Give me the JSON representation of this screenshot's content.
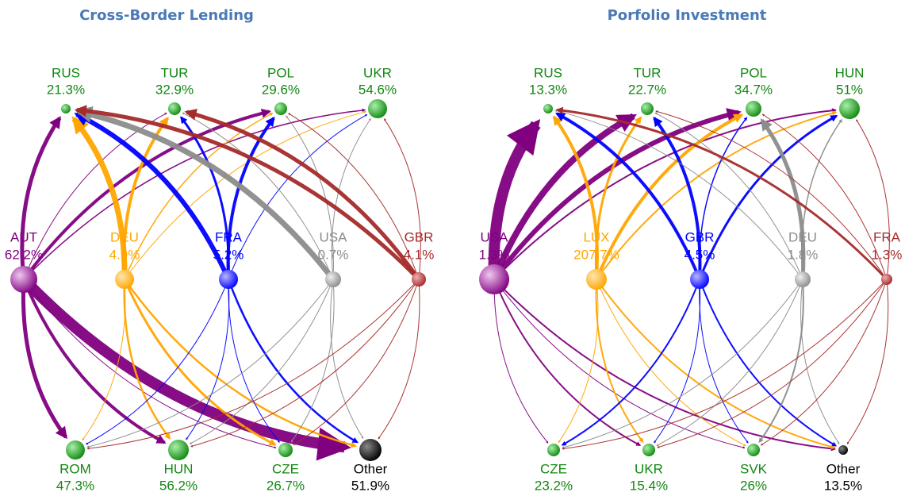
{
  "panels": [
    {
      "title": "Cross-Border Lending",
      "sources": [
        {
          "label": "AUT",
          "value": "62.2%"
        },
        {
          "label": "DEU",
          "value": "4.9%"
        },
        {
          "label": "FRA",
          "value": "5.2%"
        },
        {
          "label": "USA",
          "value": "0.7%"
        },
        {
          "label": "GBR",
          "value": "4.1%"
        }
      ],
      "top_targets": [
        {
          "label": "RUS",
          "value": "21.3%"
        },
        {
          "label": "TUR",
          "value": "32.9%"
        },
        {
          "label": "POL",
          "value": "29.6%"
        },
        {
          "label": "UKR",
          "value": "54.6%"
        }
      ],
      "bottom_targets": [
        {
          "label": "ROM",
          "value": "47.3%"
        },
        {
          "label": "HUN",
          "value": "56.2%"
        },
        {
          "label": "CZE",
          "value": "26.7%"
        },
        {
          "label": "Other",
          "value": "51.9%"
        }
      ]
    },
    {
      "title": "Porfolio Investment",
      "sources": [
        {
          "label": "USA",
          "value": "1.3%"
        },
        {
          "label": "LUX",
          "value": "207.7%"
        },
        {
          "label": "GBR",
          "value": "4.5%"
        },
        {
          "label": "DEU",
          "value": "1.8%"
        },
        {
          "label": "FRA",
          "value": "1.3%"
        }
      ],
      "top_targets": [
        {
          "label": "RUS",
          "value": "13.3%"
        },
        {
          "label": "TUR",
          "value": "22.7%"
        },
        {
          "label": "POL",
          "value": "34.7%"
        },
        {
          "label": "HUN",
          "value": "51%"
        }
      ],
      "bottom_targets": [
        {
          "label": "CZE",
          "value": "23.2%"
        },
        {
          "label": "UKR",
          "value": "15.4%"
        },
        {
          "label": "SVK",
          "value": "26%"
        },
        {
          "label": "Other",
          "value": "13.5%"
        }
      ]
    }
  ]
}
